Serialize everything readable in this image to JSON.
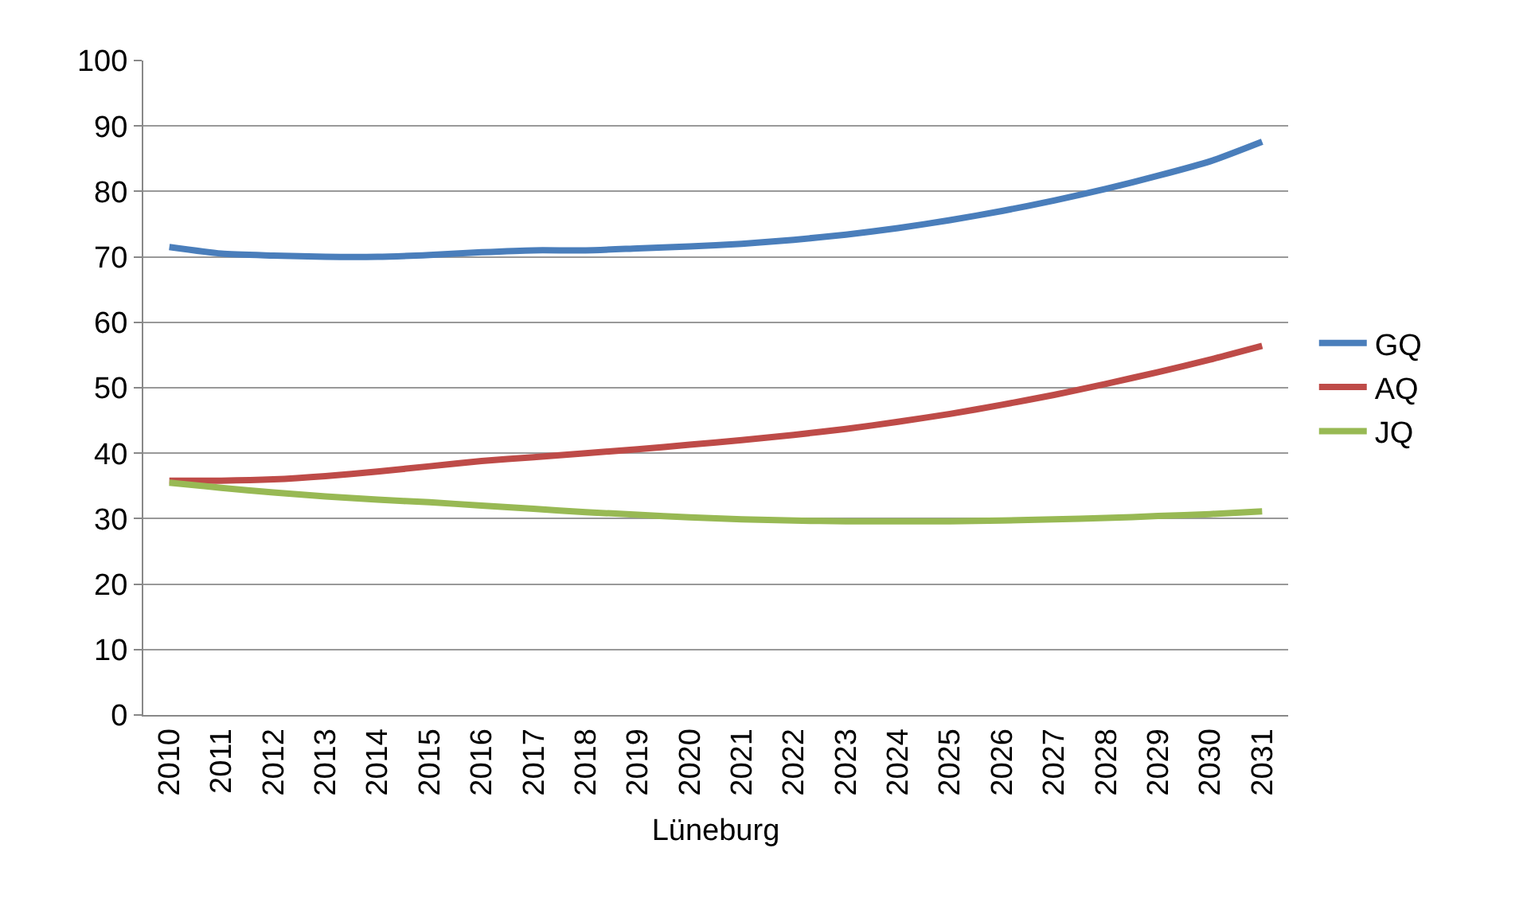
{
  "chart_data": {
    "type": "line",
    "xlabel": "Lüneburg",
    "categories": [
      "2010",
      "2011",
      "2012",
      "2013",
      "2014",
      "2015",
      "2016",
      "2017",
      "2018",
      "2019",
      "2020",
      "2021",
      "2022",
      "2023",
      "2024",
      "2025",
      "2026",
      "2027",
      "2028",
      "2029",
      "2030",
      "2031"
    ],
    "series": [
      {
        "name": "GQ",
        "color": "#4a7ebb",
        "values": [
          71.5,
          70.5,
          70.2,
          70,
          70,
          70.3,
          70.7,
          71,
          71,
          71.3,
          71.6,
          72,
          72.6,
          73.4,
          74.4,
          75.6,
          77,
          78.6,
          80.4,
          82.4,
          84.6,
          87.6
        ]
      },
      {
        "name": "AQ",
        "color": "#be4b48",
        "values": [
          35.8,
          35.8,
          36,
          36.5,
          37.2,
          38,
          38.8,
          39.4,
          40,
          40.6,
          41.3,
          42,
          42.8,
          43.7,
          44.8,
          46,
          47.4,
          48.9,
          50.6,
          52.4,
          54.3,
          56.4
        ]
      },
      {
        "name": "JQ",
        "color": "#98b954",
        "values": [
          35.5,
          34.7,
          34,
          33.4,
          32.9,
          32.5,
          32,
          31.5,
          31,
          30.6,
          30.2,
          29.9,
          29.7,
          29.6,
          29.6,
          29.6,
          29.7,
          29.9,
          30.1,
          30.4,
          30.7,
          31.1
        ]
      }
    ],
    "ylim": [
      0,
      100
    ],
    "yticks": [
      0,
      10,
      20,
      30,
      40,
      50,
      60,
      70,
      80,
      90,
      100
    ],
    "grid": "y",
    "legend": "right",
    "marker": "none",
    "line_style": "solid"
  }
}
